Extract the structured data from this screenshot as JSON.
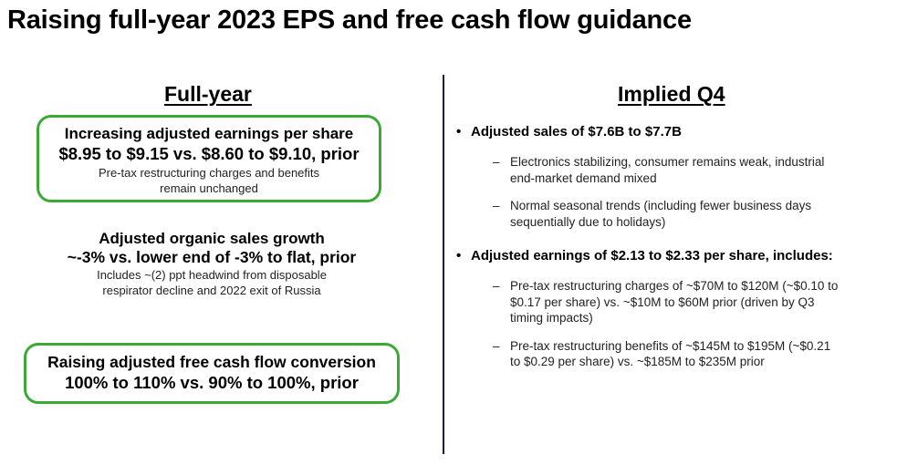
{
  "title": "Raising full-year 2023 EPS and free cash flow guidance",
  "left": {
    "heading": "Full-year",
    "eps": {
      "line1": "Increasing adjusted earnings per share",
      "line2": "$8.95 to $9.15 vs. $8.60 to $9.10, prior",
      "note1": "Pre-tax restructuring charges and benefits",
      "note2": "remain unchanged"
    },
    "organic": {
      "line1": "Adjusted organic sales growth",
      "line2": "~-3% vs. lower end of -3% to flat, prior",
      "note1": "Includes ~(2) ppt headwind from disposable",
      "note2": "respirator decline and 2022 exit of Russia"
    },
    "fcf": {
      "line1": "Raising adjusted free cash flow conversion",
      "line2": "100% to 110% vs. 90% to 100%, prior"
    },
    "highlight_color": "#3aaa35"
  },
  "right": {
    "heading": "Implied Q4",
    "bullets": [
      {
        "text": "Adjusted sales of $7.6B to $7.7B",
        "subs": [
          [
            "Electronics stabilizing, consumer remains weak, industrial",
            "end-market demand mixed"
          ],
          [
            "Normal seasonal trends (including fewer business days",
            "sequentially due to holidays)"
          ]
        ]
      },
      {
        "text": "Adjusted earnings of $2.13 to $2.33 per share, includes:",
        "subs": [
          [
            "Pre-tax restructuring charges of ~$70M to $120M (~$0.10 to",
            "$0.17 per share) vs. ~$10M to $60M prior (driven by Q3",
            "timing impacts)"
          ],
          [
            "Pre-tax restructuring benefits of ~$145M to $195M (~$0.21",
            "to $0.29 per share) vs. ~$185M to $235M prior"
          ]
        ]
      }
    ],
    "bullet_symbol": "•",
    "dash_symbol": "–"
  }
}
